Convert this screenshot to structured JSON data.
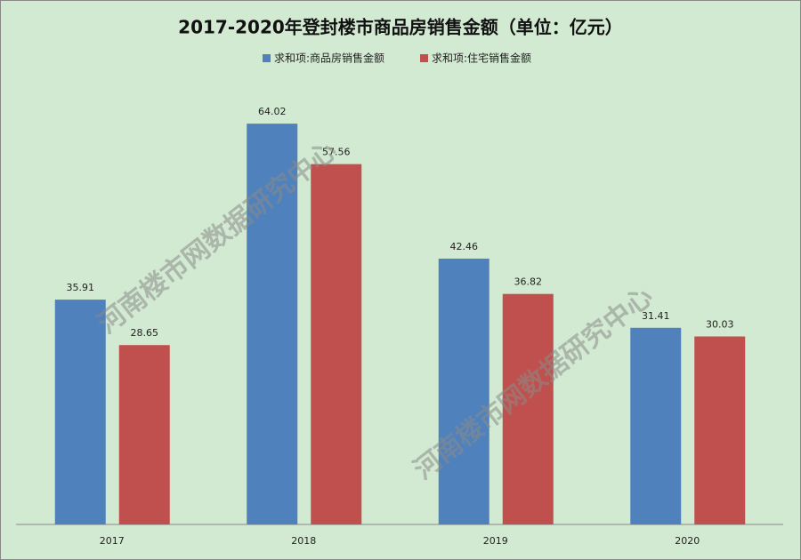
{
  "chart_data": {
    "type": "bar",
    "title": "2017-2020年登封楼市商品房销售金额（单位：亿元）",
    "watermark": "河南楼市网数据研究中心",
    "categories": [
      "2017",
      "2018",
      "2019",
      "2020"
    ],
    "series": [
      {
        "name": "求和项:商品房销售金额",
        "color": "#4f81bd",
        "values": [
          35.91,
          64.02,
          42.46,
          31.41
        ]
      },
      {
        "name": "求和项:住宅销售金额",
        "color": "#c0504d",
        "values": [
          28.65,
          57.56,
          36.82,
          30.03
        ]
      }
    ],
    "ylim": [
      0,
      70
    ]
  }
}
